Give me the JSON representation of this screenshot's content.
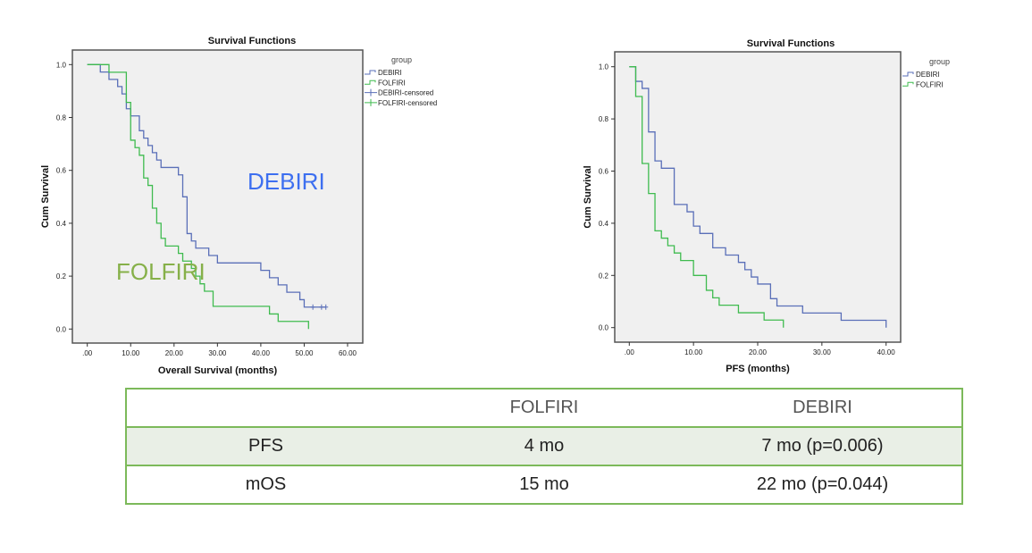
{
  "colors": {
    "debiri": "#5a6fb8",
    "folfiri": "#3fbb4f",
    "plot_bg": "#f0f0f0",
    "table_border": "#7cb95a",
    "table_shade": "#e9efe6",
    "overlay_debiri": "#3d6ff0",
    "overlay_folfiri": "#86b049"
  },
  "chart_data": [
    {
      "type": "line",
      "step": true,
      "title": "Survival Functions",
      "xlabel": "Overall Survival (months)",
      "ylabel": "Cum Survival",
      "xlim": [
        0,
        60
      ],
      "ylim": [
        0,
        1
      ],
      "xticks": [
        ".00",
        "10.00",
        "20.00",
        "30.00",
        "40.00",
        "50.00",
        "60.00"
      ],
      "yticks": [
        "0.0",
        "0.2",
        "0.4",
        "0.6",
        "0.8",
        "1.0"
      ],
      "grid": false,
      "legend_title": "group",
      "legend_position": "right",
      "legend": [
        "DEBIRI",
        "FOLFIRI",
        "DEBIRI-censored",
        "FOLFIRI-censored"
      ],
      "annotations": [
        "DEBIRI",
        "FOLFIRI"
      ],
      "series": [
        {
          "name": "DEBIRI",
          "x": [
            0,
            3,
            5,
            7,
            8,
            9,
            10,
            12,
            13,
            14,
            15,
            16,
            17,
            21,
            22,
            23,
            24,
            25,
            28,
            30,
            40,
            42,
            44,
            46,
            49,
            50,
            55
          ],
          "y": [
            1.0,
            0.972,
            0.944,
            0.917,
            0.889,
            0.833,
            0.806,
            0.75,
            0.722,
            0.694,
            0.667,
            0.639,
            0.611,
            0.583,
            0.5,
            0.361,
            0.333,
            0.306,
            0.278,
            0.25,
            0.222,
            0.194,
            0.167,
            0.139,
            0.111,
            0.083,
            0.083
          ],
          "censored": [
            52,
            54,
            55
          ]
        },
        {
          "name": "FOLFIRI",
          "x": [
            0,
            5,
            9,
            10,
            11,
            12,
            13,
            14,
            15,
            16,
            17,
            18,
            21,
            22,
            24,
            25,
            26,
            27,
            29,
            42,
            44,
            51
          ],
          "y": [
            1.0,
            0.971,
            0.857,
            0.714,
            0.686,
            0.657,
            0.571,
            0.543,
            0.457,
            0.4,
            0.343,
            0.314,
            0.286,
            0.257,
            0.229,
            0.2,
            0.171,
            0.143,
            0.086,
            0.057,
            0.029,
            0.0
          ],
          "censored": []
        }
      ]
    },
    {
      "type": "line",
      "step": true,
      "title": "Survival Functions",
      "xlabel": "PFS (months)",
      "ylabel": "Cum Survival",
      "xlim": [
        0,
        40
      ],
      "ylim": [
        0,
        1
      ],
      "xticks": [
        ".00",
        "10.00",
        "20.00",
        "30.00",
        "40.00"
      ],
      "yticks": [
        "0.0",
        "0.2",
        "0.4",
        "0.6",
        "0.8",
        "1.0"
      ],
      "grid": false,
      "legend_title": "group",
      "legend_position": "right",
      "legend": [
        "DEBIRI",
        "FOLFIRI"
      ],
      "series": [
        {
          "name": "DEBIRI",
          "x": [
            0,
            1,
            2,
            3,
            4,
            5,
            7,
            9,
            10,
            11,
            13,
            15,
            17,
            18,
            19,
            20,
            22,
            23,
            27,
            33,
            40
          ],
          "y": [
            1.0,
            0.944,
            0.917,
            0.75,
            0.639,
            0.611,
            0.472,
            0.444,
            0.389,
            0.361,
            0.306,
            0.278,
            0.25,
            0.222,
            0.194,
            0.167,
            0.111,
            0.083,
            0.056,
            0.028,
            0.0
          ]
        },
        {
          "name": "FOLFIRI",
          "x": [
            0,
            1,
            2,
            3,
            4,
            5,
            6,
            7,
            8,
            10,
            12,
            13,
            14,
            17,
            21,
            24
          ],
          "y": [
            1.0,
            0.886,
            0.629,
            0.514,
            0.371,
            0.343,
            0.314,
            0.286,
            0.257,
            0.2,
            0.143,
            0.114,
            0.086,
            0.057,
            0.029,
            0.0
          ]
        }
      ]
    }
  ],
  "table": {
    "headers": [
      "",
      "FOLFIRI",
      "DEBIRI"
    ],
    "rows": [
      [
        "PFS",
        "4 mo",
        "7 mo (p=0.006)"
      ],
      [
        "mOS",
        "15 mo",
        "22 mo (p=0.044)"
      ]
    ]
  }
}
